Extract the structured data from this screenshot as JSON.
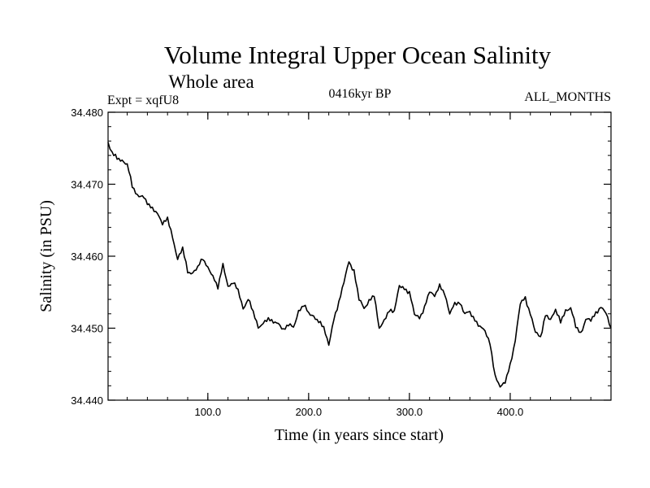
{
  "chart_data": {
    "type": "line",
    "title": "Volume Integral Upper Ocean Salinity",
    "subtitle": "Whole area",
    "annotations": {
      "experiment": "Expt = xqfU8",
      "period": "0416kyr BP",
      "months": "ALL_MONTHS"
    },
    "xlabel": "Time (in years since start)",
    "ylabel": "Salinity (in PSU)",
    "xlim": [
      1,
      500
    ],
    "ylim": [
      34.44,
      34.48
    ],
    "x_ticks": [
      100,
      200,
      300,
      400
    ],
    "x_tick_labels": [
      "100.0",
      "200.0",
      "300.0",
      "400.0"
    ],
    "y_ticks": [
      34.44,
      34.45,
      34.46,
      34.47,
      34.48
    ],
    "y_tick_labels": [
      "34.440",
      "34.450",
      "34.460",
      "34.470",
      "34.480"
    ],
    "grid": false,
    "line_color": "#000000",
    "series": [
      {
        "name": "Salinity",
        "x": [
          1,
          5,
          10,
          15,
          20,
          25,
          30,
          35,
          40,
          45,
          50,
          55,
          60,
          65,
          70,
          75,
          80,
          85,
          90,
          95,
          100,
          105,
          110,
          115,
          120,
          125,
          130,
          135,
          140,
          145,
          150,
          155,
          160,
          165,
          170,
          175,
          180,
          185,
          190,
          195,
          200,
          205,
          210,
          215,
          220,
          225,
          230,
          235,
          240,
          245,
          250,
          255,
          260,
          265,
          270,
          275,
          280,
          285,
          290,
          295,
          300,
          305,
          310,
          315,
          320,
          325,
          330,
          335,
          340,
          345,
          350,
          355,
          360,
          365,
          370,
          375,
          380,
          385,
          390,
          395,
          400,
          405,
          410,
          415,
          420,
          425,
          430,
          435,
          440,
          445,
          450,
          455,
          460,
          465,
          470,
          475,
          480,
          485,
          490,
          495,
          500
        ],
        "values": [
          34.4756,
          34.4745,
          34.4735,
          34.4733,
          34.4728,
          34.4697,
          34.4685,
          34.4683,
          34.4674,
          34.4667,
          34.4658,
          34.4646,
          34.4653,
          34.4625,
          34.4597,
          34.4611,
          34.4578,
          34.4577,
          34.4584,
          34.4598,
          34.4584,
          34.4571,
          34.4558,
          34.4588,
          34.4557,
          34.4565,
          34.4552,
          34.4527,
          34.4541,
          34.4522,
          34.4502,
          34.4506,
          34.4513,
          34.451,
          34.4505,
          34.4498,
          34.4506,
          34.45,
          34.4524,
          34.4532,
          34.4521,
          34.4517,
          34.4508,
          34.4502,
          34.4477,
          34.4511,
          34.4537,
          34.4564,
          34.4592,
          34.458,
          34.454,
          34.4528,
          34.4538,
          34.4545,
          34.4501,
          34.451,
          34.4524,
          34.4525,
          34.4558,
          34.4555,
          34.455,
          34.4519,
          34.4515,
          34.4528,
          34.4551,
          34.4546,
          34.4558,
          34.4548,
          34.4521,
          34.4533,
          34.4536,
          34.452,
          34.4522,
          34.4512,
          34.4501,
          34.4497,
          34.4479,
          34.4432,
          34.442,
          34.4425,
          34.4448,
          34.4484,
          34.4534,
          34.4542,
          34.452,
          34.4494,
          34.4488,
          34.4518,
          34.4511,
          34.4527,
          34.4508,
          34.4524,
          34.4529,
          34.4502,
          34.4493,
          34.4512,
          34.4511,
          34.4522,
          34.4528,
          34.4522,
          34.45
        ]
      }
    ]
  }
}
